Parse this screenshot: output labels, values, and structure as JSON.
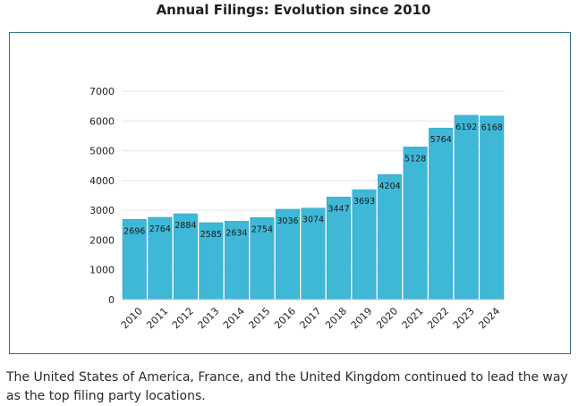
{
  "header": {
    "title": "Annual Filings: Evolution since 2010"
  },
  "caption": "The United States of America, France, and the United Kingdom continued to lead the way as the top filing party locations.",
  "colors": {
    "bar": "#3fb8d8",
    "bar_stroke": "#2a9fc0",
    "grid": "#e6e6e6",
    "frame": "#2e6f86"
  },
  "chart_data": {
    "type": "bar",
    "title": "Annual Filings: Evolution since 2010",
    "xlabel": "",
    "ylabel": "",
    "categories": [
      "2010",
      "2011",
      "2012",
      "2013",
      "2014",
      "2015",
      "2016",
      "2017",
      "2018",
      "2019",
      "2020",
      "2021",
      "2022",
      "2023",
      "2024"
    ],
    "values": [
      2696,
      2764,
      2884,
      2585,
      2634,
      2754,
      3036,
      3074,
      3447,
      3693,
      4204,
      5128,
      5764,
      6192,
      6168
    ],
    "ylim": [
      0,
      7000
    ],
    "yticks": [
      0,
      1000,
      2000,
      3000,
      4000,
      5000,
      6000,
      7000
    ],
    "grid": true,
    "legend": "none"
  }
}
